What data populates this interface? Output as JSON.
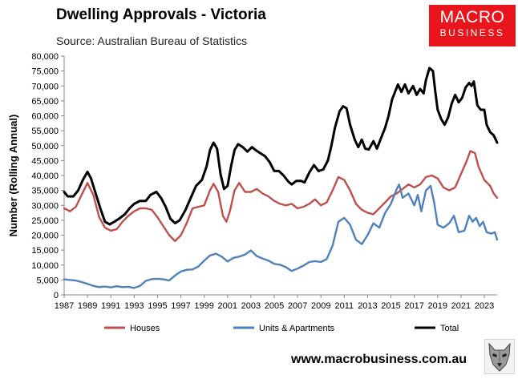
{
  "header": {
    "title": "Dwelling Approvals - Victoria",
    "subtitle": "Source: Australian Bureau of Statistics"
  },
  "logo": {
    "line1": "MACRO",
    "line2": "BUSINESS",
    "color": "#e8161c"
  },
  "footer": {
    "url": "www.macrobusiness.com.au",
    "mascot_icon": "wolf-icon"
  },
  "chart_data": {
    "type": "line",
    "title": "Dwelling Approvals - Victoria",
    "ylabel": "Number (Rolling Annual)",
    "xlabel": "",
    "ylim": [
      0,
      80000
    ],
    "xlim": [
      1987,
      2024.1
    ],
    "grid": false,
    "legend_position": "bottom",
    "y_ticks": [
      0,
      5000,
      10000,
      15000,
      20000,
      25000,
      30000,
      35000,
      40000,
      45000,
      50000,
      55000,
      60000,
      65000,
      70000,
      75000,
      80000
    ],
    "y_tick_labels": [
      "0",
      "5,000",
      "10,000",
      "15,000",
      "20,000",
      "25,000",
      "30,000",
      "35,000",
      "40,000",
      "45,000",
      "50,000",
      "55,000",
      "60,000",
      "65,000",
      "70,000",
      "75,000",
      "80,000"
    ],
    "x_ticks": [
      1987,
      1989,
      1991,
      1993,
      1995,
      1997,
      1999,
      2001,
      2003,
      2005,
      2007,
      2009,
      2011,
      2013,
      2015,
      2017,
      2019,
      2021,
      2023
    ],
    "x_tick_labels": [
      "1987",
      "1989",
      "1991",
      "1993",
      "1995",
      "1997",
      "1999",
      "2001",
      "2003",
      "2005",
      "2007",
      "2009",
      "2011",
      "2013",
      "2015",
      "2017",
      "2019",
      "2021",
      "2023"
    ],
    "series": [
      {
        "name": "Houses",
        "color": "#c0504d",
        "points": [
          [
            1987,
            29000
          ],
          [
            1987.5,
            28000
          ],
          [
            1988,
            29500
          ],
          [
            1988.5,
            33500
          ],
          [
            1989,
            37500
          ],
          [
            1989.5,
            33500
          ],
          [
            1990,
            26000
          ],
          [
            1990.5,
            22500
          ],
          [
            1991,
            21500
          ],
          [
            1991.5,
            22000
          ],
          [
            1992,
            24500
          ],
          [
            1992.5,
            26500
          ],
          [
            1993,
            28000
          ],
          [
            1993.5,
            29000
          ],
          [
            1994,
            29000
          ],
          [
            1994.5,
            28500
          ],
          [
            1995,
            26000
          ],
          [
            1995.5,
            23000
          ],
          [
            1996,
            20000
          ],
          [
            1996.5,
            18000
          ],
          [
            1997,
            20000
          ],
          [
            1997.5,
            24000
          ],
          [
            1998,
            29000
          ],
          [
            1998.5,
            29500
          ],
          [
            1999,
            30000
          ],
          [
            1999.5,
            35000
          ],
          [
            1999.8,
            37200
          ],
          [
            2000.2,
            34500
          ],
          [
            2000.6,
            26500
          ],
          [
            2000.9,
            24500
          ],
          [
            2001.2,
            28000
          ],
          [
            2001.6,
            35000
          ],
          [
            2002,
            37500
          ],
          [
            2002.5,
            34500
          ],
          [
            2003,
            34500
          ],
          [
            2003.5,
            35500
          ],
          [
            2004,
            34000
          ],
          [
            2004.5,
            33000
          ],
          [
            2005,
            31500
          ],
          [
            2005.5,
            30500
          ],
          [
            2006,
            30000
          ],
          [
            2006.5,
            30500
          ],
          [
            2007,
            29000
          ],
          [
            2007.5,
            29500
          ],
          [
            2008,
            30500
          ],
          [
            2008.5,
            32000
          ],
          [
            2009,
            30000
          ],
          [
            2009.5,
            31000
          ],
          [
            2010,
            35000
          ],
          [
            2010.5,
            39500
          ],
          [
            2011,
            38500
          ],
          [
            2011.5,
            35000
          ],
          [
            2012,
            30500
          ],
          [
            2012.5,
            28500
          ],
          [
            2013,
            27500
          ],
          [
            2013.5,
            27000
          ],
          [
            2014,
            29000
          ],
          [
            2014.5,
            31000
          ],
          [
            2015,
            33000
          ],
          [
            2015.5,
            34000
          ],
          [
            2016,
            35500
          ],
          [
            2016.5,
            37000
          ],
          [
            2017,
            36000
          ],
          [
            2017.5,
            37000
          ],
          [
            2018,
            39500
          ],
          [
            2018.5,
            40000
          ],
          [
            2019,
            39000
          ],
          [
            2019.5,
            36000
          ],
          [
            2020,
            35000
          ],
          [
            2020.5,
            36000
          ],
          [
            2021,
            40500
          ],
          [
            2021.5,
            45000
          ],
          [
            2021.8,
            48200
          ],
          [
            2022.2,
            47500
          ],
          [
            2022.5,
            43000
          ],
          [
            2023,
            38500
          ],
          [
            2023.5,
            36500
          ],
          [
            2023.8,
            34000
          ],
          [
            2024.1,
            32500
          ]
        ]
      },
      {
        "name": "Units & Apartments",
        "color": "#4f81bd",
        "points": [
          [
            1987,
            5200
          ],
          [
            1987.5,
            5000
          ],
          [
            1988,
            4800
          ],
          [
            1988.5,
            4300
          ],
          [
            1989,
            3700
          ],
          [
            1989.5,
            3000
          ],
          [
            1990,
            2600
          ],
          [
            1990.5,
            2800
          ],
          [
            1991,
            2500
          ],
          [
            1991.5,
            2900
          ],
          [
            1992,
            2600
          ],
          [
            1992.5,
            2700
          ],
          [
            1993,
            2300
          ],
          [
            1993.5,
            3000
          ],
          [
            1994,
            4700
          ],
          [
            1994.5,
            5300
          ],
          [
            1995,
            5400
          ],
          [
            1995.5,
            5200
          ],
          [
            1996,
            4800
          ],
          [
            1996.5,
            6500
          ],
          [
            1997,
            7800
          ],
          [
            1997.5,
            8400
          ],
          [
            1998,
            8500
          ],
          [
            1998.5,
            9500
          ],
          [
            1999,
            11500
          ],
          [
            1999.5,
            13200
          ],
          [
            2000,
            13800
          ],
          [
            2000.5,
            12800
          ],
          [
            2001,
            11200
          ],
          [
            2001.5,
            12400
          ],
          [
            2002,
            12800
          ],
          [
            2002.5,
            13500
          ],
          [
            2003,
            14900
          ],
          [
            2003.5,
            13000
          ],
          [
            2004,
            12200
          ],
          [
            2004.5,
            11500
          ],
          [
            2005,
            10400
          ],
          [
            2005.5,
            10100
          ],
          [
            2006,
            9300
          ],
          [
            2006.5,
            8000
          ],
          [
            2007,
            8800
          ],
          [
            2007.5,
            9800
          ],
          [
            2008,
            11000
          ],
          [
            2008.5,
            11300
          ],
          [
            2009,
            11000
          ],
          [
            2009.5,
            12000
          ],
          [
            2010,
            16500
          ],
          [
            2010.5,
            24500
          ],
          [
            2011,
            25800
          ],
          [
            2011.5,
            23500
          ],
          [
            2012,
            18500
          ],
          [
            2012.5,
            17000
          ],
          [
            2013,
            20000
          ],
          [
            2013.5,
            24000
          ],
          [
            2014,
            22500
          ],
          [
            2014.5,
            27500
          ],
          [
            2015,
            30500
          ],
          [
            2015.5,
            35500
          ],
          [
            2015.7,
            37000
          ],
          [
            2016,
            32500
          ],
          [
            2016.5,
            34000
          ],
          [
            2017,
            30000
          ],
          [
            2017.3,
            33500
          ],
          [
            2017.6,
            28000
          ],
          [
            2018,
            35000
          ],
          [
            2018.4,
            36500
          ],
          [
            2018.7,
            31000
          ],
          [
            2019,
            23500
          ],
          [
            2019.5,
            22500
          ],
          [
            2020,
            24000
          ],
          [
            2020.4,
            26500
          ],
          [
            2020.8,
            21000
          ],
          [
            2021.3,
            21500
          ],
          [
            2021.7,
            26500
          ],
          [
            2022,
            24500
          ],
          [
            2022.3,
            25800
          ],
          [
            2022.6,
            23000
          ],
          [
            2022.9,
            24500
          ],
          [
            2023.2,
            21000
          ],
          [
            2023.6,
            20500
          ],
          [
            2023.9,
            21000
          ],
          [
            2024.1,
            18500
          ]
        ]
      },
      {
        "name": "Total",
        "color": "#000000",
        "points": [
          [
            1987,
            34500
          ],
          [
            1987.3,
            33000
          ],
          [
            1987.8,
            33000
          ],
          [
            1988.2,
            35000
          ],
          [
            1988.6,
            38500
          ],
          [
            1989,
            41200
          ],
          [
            1989.3,
            39000
          ],
          [
            1989.7,
            34000
          ],
          [
            1990.1,
            29000
          ],
          [
            1990.5,
            24500
          ],
          [
            1990.9,
            23600
          ],
          [
            1991.3,
            24500
          ],
          [
            1991.7,
            25500
          ],
          [
            1992.2,
            27000
          ],
          [
            1992.6,
            29000
          ],
          [
            1993,
            30500
          ],
          [
            1993.5,
            31500
          ],
          [
            1994,
            31500
          ],
          [
            1994.4,
            33500
          ],
          [
            1994.9,
            34500
          ],
          [
            1995.3,
            32500
          ],
          [
            1995.7,
            29500
          ],
          [
            1996.1,
            25500
          ],
          [
            1996.5,
            24000
          ],
          [
            1996.9,
            25000
          ],
          [
            1997.4,
            28500
          ],
          [
            1997.9,
            33000
          ],
          [
            1998.3,
            36500
          ],
          [
            1998.8,
            38500
          ],
          [
            1999.2,
            43000
          ],
          [
            1999.5,
            48500
          ],
          [
            1999.8,
            51000
          ],
          [
            2000.1,
            49000
          ],
          [
            2000.4,
            40500
          ],
          [
            2000.7,
            35500
          ],
          [
            2001,
            36500
          ],
          [
            2001.3,
            43000
          ],
          [
            2001.6,
            48500
          ],
          [
            2001.9,
            50500
          ],
          [
            2002.3,
            49500
          ],
          [
            2002.7,
            48000
          ],
          [
            2003.1,
            49500
          ],
          [
            2003.4,
            48500
          ],
          [
            2003.8,
            47500
          ],
          [
            2004.2,
            46500
          ],
          [
            2004.6,
            44500
          ],
          [
            2005,
            41500
          ],
          [
            2005.4,
            41500
          ],
          [
            2005.8,
            40000
          ],
          [
            2006.2,
            38000
          ],
          [
            2006.5,
            37000
          ],
          [
            2006.9,
            38200
          ],
          [
            2007.3,
            38200
          ],
          [
            2007.6,
            37700
          ],
          [
            2008,
            41000
          ],
          [
            2008.4,
            43500
          ],
          [
            2008.8,
            41500
          ],
          [
            2009.2,
            42000
          ],
          [
            2009.6,
            45000
          ],
          [
            2009.9,
            50000
          ],
          [
            2010.2,
            56000
          ],
          [
            2010.6,
            61500
          ],
          [
            2010.9,
            63200
          ],
          [
            2011.2,
            62500
          ],
          [
            2011.5,
            57000
          ],
          [
            2011.9,
            52000
          ],
          [
            2012.2,
            49500
          ],
          [
            2012.5,
            52000
          ],
          [
            2012.8,
            49000
          ],
          [
            2013.1,
            48700
          ],
          [
            2013.5,
            51500
          ],
          [
            2013.8,
            49000
          ],
          [
            2014.1,
            52000
          ],
          [
            2014.5,
            56000
          ],
          [
            2014.8,
            60000
          ],
          [
            2015.1,
            65500
          ],
          [
            2015.4,
            68500
          ],
          [
            2015.6,
            70500
          ],
          [
            2015.9,
            68000
          ],
          [
            2016.2,
            70500
          ],
          [
            2016.5,
            67500
          ],
          [
            2016.9,
            70000
          ],
          [
            2017.2,
            67000
          ],
          [
            2017.5,
            69000
          ],
          [
            2017.8,
            67500
          ],
          [
            2018,
            72000
          ],
          [
            2018.3,
            76000
          ],
          [
            2018.6,
            75000
          ],
          [
            2018.8,
            68000
          ],
          [
            2019,
            62000
          ],
          [
            2019.3,
            59000
          ],
          [
            2019.6,
            57000
          ],
          [
            2019.9,
            59500
          ],
          [
            2020.2,
            64000
          ],
          [
            2020.5,
            67000
          ],
          [
            2020.8,
            64500
          ],
          [
            2021.1,
            66000
          ],
          [
            2021.4,
            69500
          ],
          [
            2021.7,
            71000
          ],
          [
            2021.9,
            70000
          ],
          [
            2022.1,
            71500
          ],
          [
            2022.4,
            63500
          ],
          [
            2022.7,
            62000
          ],
          [
            2023,
            62000
          ],
          [
            2023.2,
            57000
          ],
          [
            2023.5,
            54500
          ],
          [
            2023.8,
            53500
          ],
          [
            2024.1,
            51000
          ]
        ]
      }
    ]
  }
}
